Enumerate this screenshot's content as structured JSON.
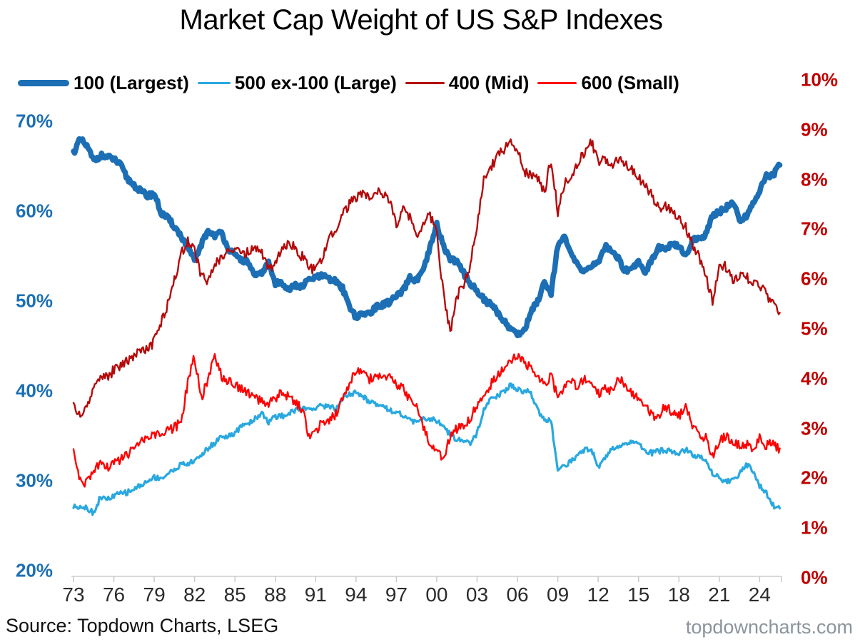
{
  "title": "Market Cap Weight of US S&P Indexes",
  "source": "Source: Topdown Charts, LSEG",
  "watermark": "topdowncharts.com",
  "legend": [
    {
      "label": "100 (Largest)",
      "color": "#1c6fb4",
      "thick": 9
    },
    {
      "label": "500 ex-100 (Large)",
      "color": "#29a8e0",
      "thick": 3
    },
    {
      "label": "400 (Mid)",
      "color": "#b40a0a",
      "thick": 3
    },
    {
      "label": "600 (Small)",
      "color": "#ff0000",
      "thick": 3
    }
  ],
  "left_axis": {
    "labels": [
      "70%",
      "60%",
      "50%",
      "40%",
      "30%",
      "20%"
    ],
    "color": "#1c6fb4"
  },
  "right_axis": {
    "labels": [
      "10%",
      "9%",
      "8%",
      "7%",
      "6%",
      "5%",
      "4%",
      "3%",
      "2%",
      "1%",
      "0%"
    ],
    "color": "#c00000"
  },
  "x_axis": {
    "labels": [
      "73",
      "76",
      "79",
      "82",
      "85",
      "88",
      "91",
      "94",
      "97",
      "00",
      "03",
      "06",
      "09",
      "12",
      "15",
      "18",
      "21",
      "24"
    ]
  },
  "chart_data": {
    "type": "line",
    "x_start": 1973,
    "x_step": 0.5,
    "x_end": 2025.5,
    "left_range": [
      20,
      70
    ],
    "right_range": [
      0,
      10
    ],
    "grid": false,
    "legend_position": "top",
    "series": [
      {
        "name": "100 (Largest)",
        "axis": "left",
        "color": "#1c6fb4",
        "width": 7.5,
        "noise": 0.3,
        "seed": 11,
        "values": [
          66.5,
          68,
          67.2,
          65.6,
          66.2,
          66,
          65.8,
          65.1,
          63.6,
          62.9,
          62.2,
          61.7,
          62,
          59.8,
          59.2,
          58.3,
          57.2,
          56,
          54.4,
          56.3,
          57.8,
          57.3,
          57.6,
          55.9,
          55,
          54.6,
          54.3,
          52.6,
          53.2,
          54.2,
          51.9,
          52.1,
          51.3,
          51.7,
          51.6,
          52.4,
          52.6,
          52.8,
          52.4,
          52.2,
          51.4,
          49.5,
          48.2,
          48.5,
          48.7,
          49.3,
          49.6,
          49.9,
          50.5,
          51.1,
          52.6,
          52.3,
          53.3,
          55.9,
          58.5,
          56.1,
          54.7,
          54.4,
          53.1,
          52,
          51.1,
          50.2,
          49.6,
          48.8,
          47.8,
          46.9,
          46.3,
          46.7,
          48.8,
          50,
          52.2,
          50.9,
          56.3,
          57,
          55.2,
          53.8,
          53.4,
          53.9,
          54.2,
          56.1,
          55.7,
          54.7,
          53.4,
          53.6,
          54.5,
          53.2,
          54.7,
          56,
          55.7,
          56.3,
          56,
          55.1,
          56.7,
          57,
          57.4,
          59.6,
          59.9,
          60.4,
          61,
          59,
          59.4,
          61,
          62.1,
          64.1,
          63.9,
          65.4
        ]
      },
      {
        "name": "500 ex-100 (Large)",
        "axis": "left",
        "color": "#29a8e0",
        "width": 3.2,
        "noise": 0.3,
        "seed": 22,
        "values": [
          27.1,
          27.2,
          27,
          26.4,
          28.2,
          27.9,
          28.3,
          28.6,
          28.7,
          29.1,
          29.5,
          29.9,
          30.4,
          30.3,
          30.7,
          31.3,
          31.8,
          31.9,
          32.2,
          32.9,
          33.6,
          34.2,
          35,
          34.9,
          35.2,
          36.2,
          36.4,
          36.9,
          37.6,
          36.5,
          37.1,
          37.2,
          37.5,
          37.9,
          38,
          38,
          38.2,
          38.3,
          38.4,
          37.9,
          39.2,
          39.6,
          39.8,
          39.4,
          38.8,
          38.6,
          38.4,
          37.9,
          37.6,
          37.3,
          36.7,
          36.5,
          36.8,
          36.9,
          36.7,
          35.9,
          35.2,
          34.6,
          34.4,
          34,
          35.3,
          37.8,
          39,
          39.4,
          40,
          40.7,
          40.1,
          40,
          39.8,
          37.9,
          36.8,
          36.6,
          31.3,
          31.7,
          32.2,
          33,
          33.5,
          33.5,
          31.6,
          32.4,
          33.7,
          33.9,
          34.1,
          34.4,
          34,
          33.4,
          33.1,
          33.3,
          33.4,
          33.2,
          33.1,
          33.5,
          32.8,
          32.7,
          32.4,
          30.8,
          30.3,
          29.9,
          30.1,
          30.7,
          31.8,
          31.2,
          29.4,
          28.6,
          27.3,
          26.8
        ]
      },
      {
        "name": "400 (Mid)",
        "axis": "right",
        "color": "#b40a0a",
        "width": 2.4,
        "noise": 0.1,
        "seed": 33,
        "values": [
          3.5,
          3.2,
          3.45,
          3.8,
          4.1,
          4,
          4.18,
          4.26,
          4.37,
          4.47,
          4.58,
          4.56,
          4.75,
          5.1,
          5.5,
          6,
          6.5,
          6.75,
          6.6,
          6.05,
          5.95,
          6.3,
          6.45,
          6.55,
          6.6,
          6.5,
          6.55,
          6.6,
          6.55,
          6.2,
          6.3,
          6.6,
          6.75,
          6.6,
          6.45,
          6.2,
          6.2,
          6.4,
          6.8,
          7,
          7.3,
          7.5,
          7.65,
          7.7,
          7.6,
          7.75,
          7.7,
          7.55,
          7.1,
          7.4,
          7.25,
          6.9,
          7.1,
          7.3,
          6.9,
          5.7,
          4.95,
          5.65,
          5.9,
          6.3,
          7.1,
          8,
          8.2,
          8.5,
          8.6,
          8.75,
          8.6,
          8.15,
          8.1,
          8,
          7.75,
          8.4,
          7.35,
          7.9,
          8.1,
          8.35,
          8.55,
          8.75,
          8.35,
          8.4,
          8.25,
          8.4,
          8.35,
          8.2,
          8.05,
          7.85,
          7.7,
          7.4,
          7.5,
          7.35,
          7.2,
          7.05,
          6.7,
          6.45,
          6.05,
          5.55,
          6.25,
          6.25,
          5.95,
          6.05,
          6.05,
          5.9,
          5.85,
          5.7,
          5.5,
          5.3
        ]
      },
      {
        "name": "600 (Small)",
        "axis": "right",
        "color": "#ff0000",
        "width": 2.4,
        "noise": 0.1,
        "seed": 44,
        "values": [
          2.55,
          1.95,
          1.9,
          2.15,
          2.3,
          2.2,
          2.32,
          2.36,
          2.48,
          2.58,
          2.72,
          2.8,
          2.87,
          2.85,
          2.96,
          3.02,
          3.12,
          3.95,
          4.45,
          3.6,
          4,
          4.45,
          4.05,
          3.95,
          3.85,
          3.8,
          3.7,
          3.6,
          3.55,
          3.52,
          3.62,
          3.7,
          3.63,
          3.5,
          3.4,
          2.82,
          2.95,
          3.12,
          3.16,
          3.3,
          3.58,
          3.9,
          4.15,
          4.1,
          4,
          4.05,
          4,
          4.06,
          3.9,
          3.8,
          3.58,
          3.46,
          3,
          2.7,
          2.5,
          2.42,
          2.82,
          3,
          3.05,
          3.2,
          3.48,
          3.72,
          3.88,
          4.05,
          4.22,
          4.36,
          4.46,
          4.3,
          4.24,
          4,
          3.86,
          4.05,
          3.6,
          3.8,
          3.92,
          3.85,
          4,
          3.85,
          3.7,
          3.8,
          3.74,
          4,
          3.88,
          3.68,
          3.6,
          3.44,
          3.28,
          3.22,
          3.46,
          3.3,
          3.25,
          3.4,
          3.08,
          2.88,
          2.8,
          2.42,
          2.72,
          2.88,
          2.7,
          2.66,
          2.7,
          2.55,
          2.8,
          2.66,
          2.72,
          2.58
        ]
      }
    ]
  }
}
